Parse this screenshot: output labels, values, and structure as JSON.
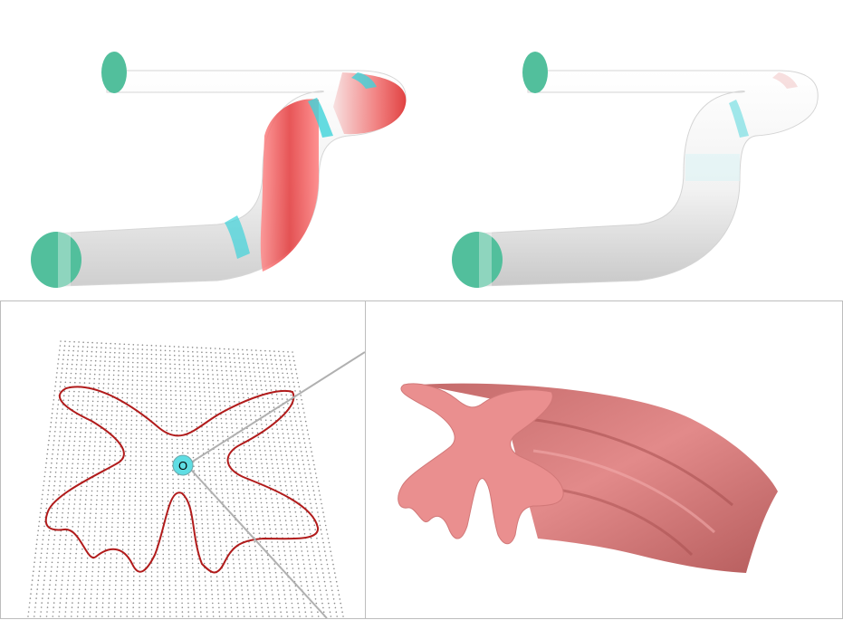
{
  "panels": {
    "tube_left": {
      "accent_colors": [
        "#e8383a",
        "#2fd1d8",
        "#ffffff"
      ],
      "cap_color": "#52bf9c"
    },
    "tube_right": {
      "accent_colors": [
        "#e8a6a6",
        "#bff0f2",
        "#ffffff"
      ],
      "cap_color": "#52bf9c"
    },
    "cross_section": {
      "curve_color": "#b11b1b",
      "grid_color": "#8a8a8a",
      "origin_label": "O",
      "origin_color": "#5fdde3"
    },
    "sweep": {
      "surface_color": "#e58585"
    }
  }
}
